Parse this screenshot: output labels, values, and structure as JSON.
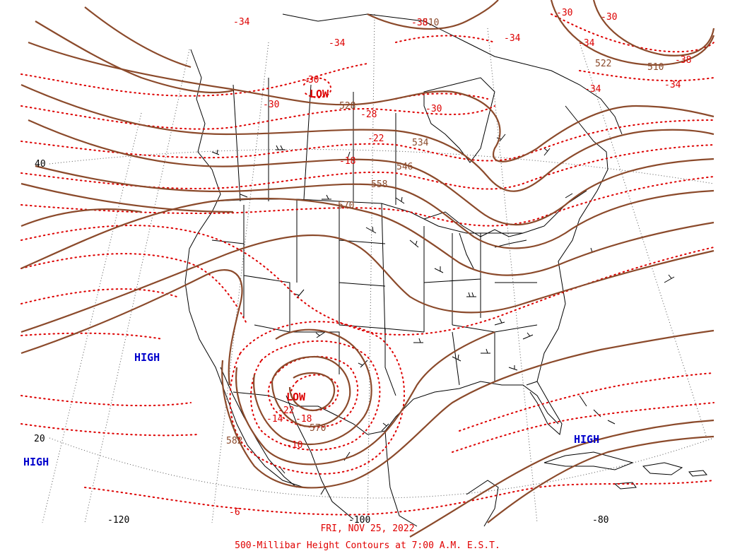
{
  "map": {
    "date": "FRI, NOV 25, 2022",
    "caption": "500-Millibar Height Contours at 7:00 A.M. E.S.T.",
    "colors": {
      "height_contour": "#8b4a2b",
      "temperature_contour": "#dd0000",
      "high_label": "#0000cc",
      "low_label": "#dd0000",
      "geography": "#000000",
      "graticule": "#555555"
    },
    "latitude_labels": [
      "40",
      "20"
    ],
    "longitude_labels": [
      "-120",
      "-100",
      "-80"
    ],
    "pressure_centers": [
      {
        "type": "HIGH",
        "label": "HIGH"
      },
      {
        "type": "HIGH",
        "label": "HIGH"
      },
      {
        "type": "HIGH",
        "label": "HIGH"
      },
      {
        "type": "LOW",
        "label": "LOW"
      },
      {
        "type": "LOW",
        "label": "LOW"
      }
    ],
    "height_labels": [
      "510",
      "522",
      "510",
      "528",
      "534",
      "546",
      "558",
      "570",
      "570",
      "582"
    ],
    "temperature_labels": [
      "-34",
      "-34",
      "-38",
      "-30",
      "-30",
      "-30",
      "-34",
      "-34",
      "-38",
      "-34",
      "-30",
      "-34",
      "-28",
      "-22",
      "-18",
      "-30",
      "-22",
      "-14",
      "-18",
      "-10",
      "-6"
    ]
  }
}
